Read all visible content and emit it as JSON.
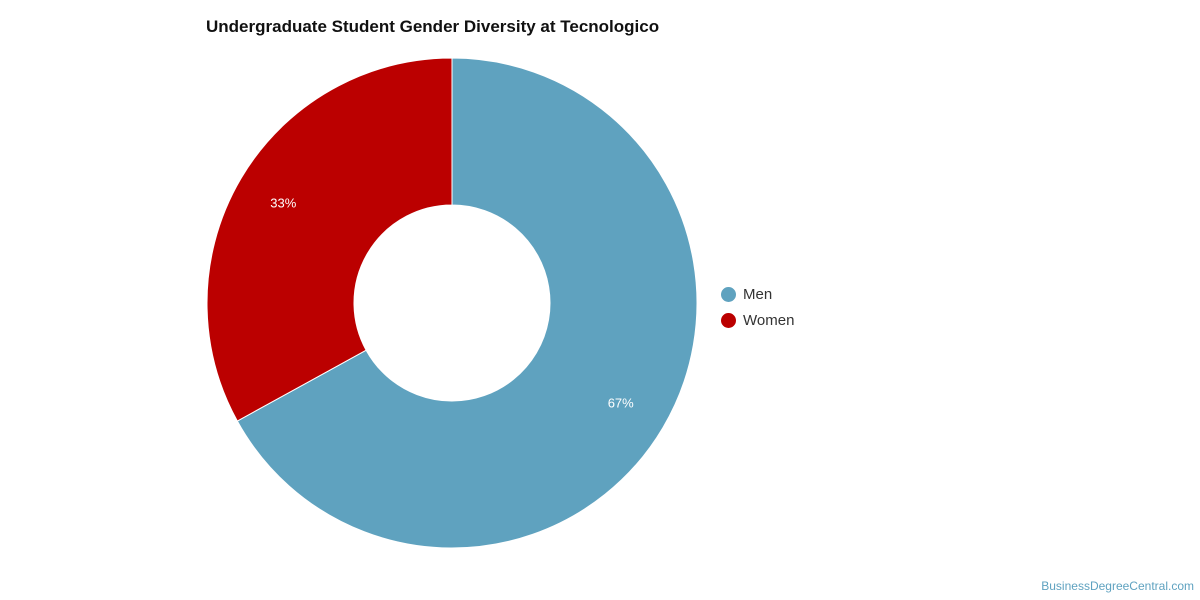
{
  "chart_data": {
    "type": "pie",
    "title": "Undergraduate Student Gender Diversity at Tecnologico",
    "categories": [
      "Men",
      "Women"
    ],
    "values": [
      67,
      33
    ],
    "data_labels": [
      "67%",
      "33%"
    ],
    "colors": [
      "#5fa2bf",
      "#bb0000"
    ],
    "donut": true,
    "legend_position": "right"
  },
  "credit": "BusinessDegreeCentral.com"
}
